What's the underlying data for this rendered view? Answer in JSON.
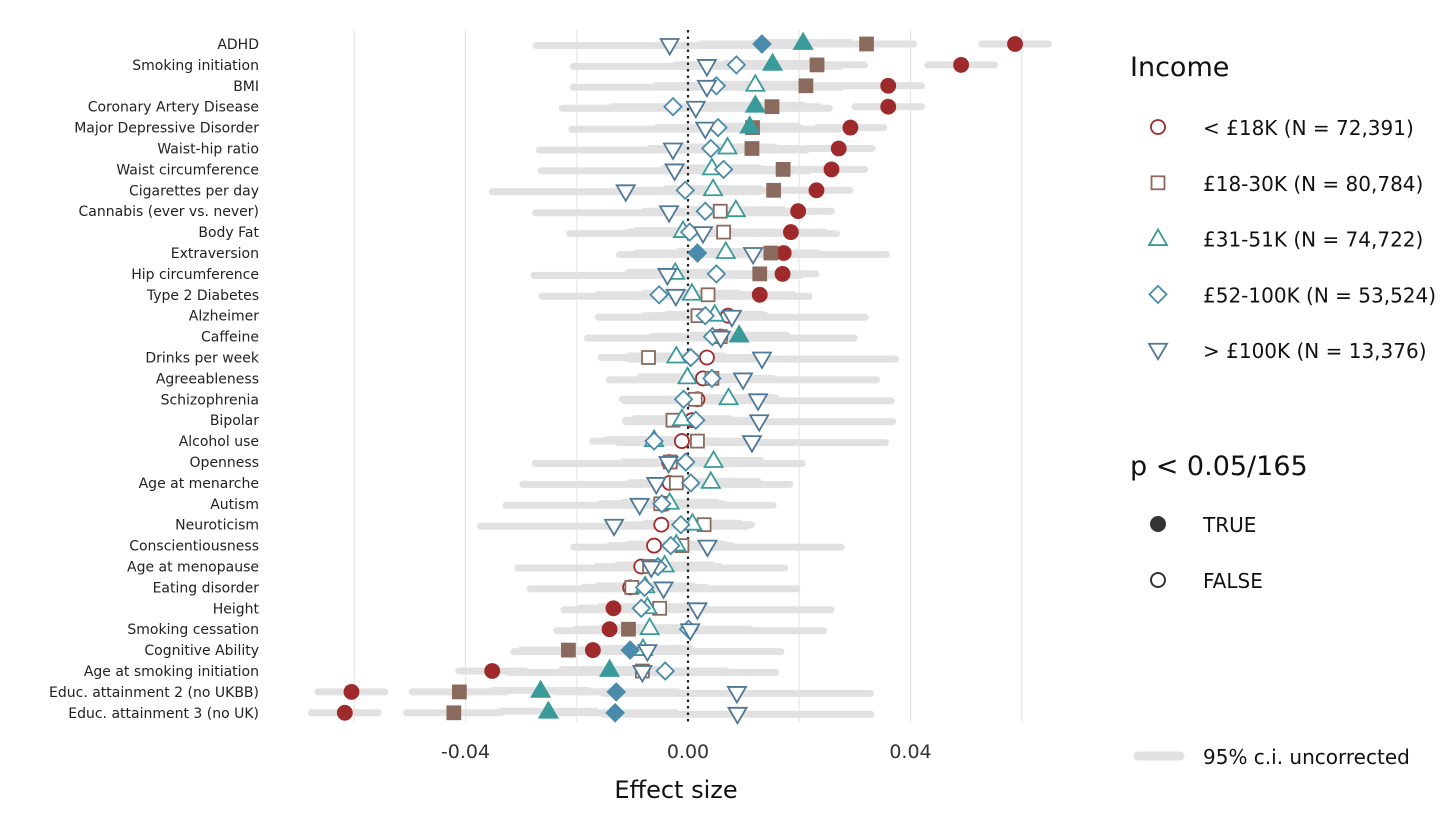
{
  "chart_data": {
    "type": "scatter",
    "xlabel": "Effect size",
    "ylabel": "",
    "xlim": [
      -0.069,
      0.065
    ],
    "x_ticks": [
      -0.04,
      0.0,
      0.04
    ],
    "x_tick_labels": [
      "-0.04",
      "0.00",
      "0.04"
    ],
    "vertical_gridlines_at": [
      -0.06,
      -0.04,
      -0.02,
      0.0,
      0.02,
      0.04,
      0.06
    ],
    "reference_line": 0.0,
    "categories": [
      "ADHD",
      "Smoking initiation",
      "BMI",
      "Coronary Artery Disease",
      "Major Depressive Disorder",
      "Waist-hip ratio",
      "Waist circumference",
      "Cigarettes per day",
      "Cannabis (ever vs. never)",
      "Body Fat",
      "Extraversion",
      "Hip circumference",
      "Type 2 Diabetes",
      "Alzheimer",
      "Caffeine",
      "Drinks per week",
      "Agreeableness",
      "Schizophrenia",
      "Bipolar",
      "Alcohol use",
      "Openness",
      "Age at menarche",
      "Autism",
      "Neuroticism",
      "Conscientiousness",
      "Age at menopause",
      "Eating disorder",
      "Height",
      "Smoking cessation",
      "Cognitive Ability",
      "Age at smoking initiation",
      "Educ. attainment 2 (no UKBB)",
      "Educ. attainment 3 (no UK)"
    ],
    "series": [
      {
        "name": "< £18K (N = 72,391)",
        "color": "#9e2a2b",
        "shape": "circle",
        "offset": 0,
        "values": [
          0.0588,
          0.0491,
          0.036,
          0.036,
          0.0292,
          0.0271,
          0.0258,
          0.0231,
          0.0198,
          0.0185,
          0.0172,
          0.017,
          0.0129,
          0.0072,
          0.0058,
          0.0034,
          0.0027,
          0.0017,
          0.0007,
          -0.0011,
          -0.0034,
          -0.0033,
          -0.0042,
          -0.0048,
          -0.0061,
          -0.0084,
          -0.0104,
          -0.0134,
          -0.0141,
          -0.0171,
          -0.0352,
          -0.0605,
          -0.0617
        ],
        "significant": [
          true,
          true,
          true,
          true,
          true,
          true,
          true,
          true,
          true,
          true,
          true,
          true,
          true,
          false,
          false,
          false,
          false,
          false,
          false,
          false,
          false,
          false,
          false,
          false,
          false,
          false,
          false,
          true,
          true,
          true,
          true,
          true,
          true
        ]
      },
      {
        "name": "£18-30K (N = 80,784)",
        "color": "#8a6a5c",
        "shape": "square",
        "offset": 0,
        "values": [
          0.0321,
          0.0232,
          0.0212,
          0.0151,
          0.0116,
          0.0115,
          0.0171,
          0.0154,
          0.0058,
          0.0064,
          0.0149,
          0.0129,
          0.0036,
          0.0018,
          0.0058,
          -0.0071,
          0.0043,
          0.0013,
          -0.0027,
          0.0017,
          -0.0032,
          -0.0021,
          -0.0049,
          0.0029,
          -0.0011,
          -0.0069,
          -0.0101,
          -0.0051,
          -0.0107,
          -0.0215,
          -0.0082,
          -0.0411,
          -0.0421
        ],
        "significant": [
          true,
          true,
          true,
          true,
          true,
          true,
          true,
          true,
          false,
          false,
          true,
          true,
          false,
          false,
          false,
          false,
          false,
          false,
          false,
          false,
          false,
          false,
          false,
          false,
          false,
          false,
          false,
          false,
          true,
          true,
          false,
          true,
          true
        ]
      },
      {
        "name": "£31-51K (N = 74,722)",
        "color": "#3a9a9a",
        "shape": "triangle-up",
        "offset": -1.5,
        "values": [
          0.0207,
          0.0152,
          0.0121,
          0.0121,
          0.0111,
          0.0071,
          0.0043,
          0.0045,
          0.0086,
          -0.0009,
          0.0068,
          -0.0023,
          0.0007,
          0.0048,
          0.0092,
          -0.0021,
          -0.0001,
          0.0073,
          -0.0011,
          -0.0061,
          0.0046,
          0.0041,
          -0.0033,
          0.0008,
          -0.0021,
          -0.0042,
          -0.0077,
          -0.0073,
          -0.0069,
          -0.0081,
          -0.0141,
          -0.0265,
          -0.0251
        ],
        "significant": [
          true,
          true,
          false,
          true,
          true,
          false,
          false,
          false,
          false,
          false,
          false,
          false,
          false,
          false,
          true,
          false,
          false,
          false,
          false,
          false,
          false,
          false,
          false,
          false,
          false,
          false,
          false,
          false,
          false,
          false,
          true,
          true,
          true
        ]
      },
      {
        "name": "£52-100K (N = 53,524)",
        "color": "#4a8aaa",
        "shape": "diamond",
        "offset": 0,
        "values": [
          0.0133,
          0.0087,
          0.0051,
          -0.0027,
          0.0054,
          0.0041,
          0.0064,
          -0.0005,
          0.0031,
          0.0003,
          0.0017,
          0.0051,
          -0.0052,
          0.0031,
          0.0044,
          0.0005,
          0.0043,
          -0.0008,
          0.0014,
          -0.0061,
          -0.0004,
          0.0005,
          -0.0047,
          -0.0013,
          -0.0031,
          -0.0054,
          -0.0078,
          -0.0084,
          0.0001,
          -0.0104,
          -0.0041,
          -0.0129,
          -0.0131
        ],
        "significant": [
          true,
          false,
          false,
          false,
          false,
          false,
          false,
          false,
          false,
          false,
          true,
          false,
          false,
          false,
          false,
          false,
          false,
          false,
          false,
          false,
          false,
          false,
          false,
          false,
          false,
          false,
          false,
          false,
          false,
          true,
          false,
          true,
          true
        ]
      },
      {
        "name": "> £100K (N = 13,376)",
        "color": "#4e7898",
        "shape": "triangle-down",
        "offset": 1.5,
        "values": [
          -0.0033,
          0.0034,
          0.0034,
          0.0014,
          0.0031,
          -0.0027,
          -0.0024,
          -0.0112,
          -0.0034,
          0.0027,
          0.0117,
          -0.0037,
          -0.0022,
          0.0079,
          0.0059,
          0.0133,
          0.0099,
          0.0126,
          0.0128,
          0.0115,
          -0.0035,
          -0.0057,
          -0.0087,
          -0.0133,
          0.0035,
          -0.0066,
          -0.0044,
          0.0017,
          0.0004,
          -0.0073,
          -0.0082,
          0.0088,
          0.0089
        ],
        "significant": [
          false,
          false,
          false,
          false,
          false,
          false,
          false,
          false,
          false,
          false,
          false,
          false,
          false,
          false,
          false,
          false,
          false,
          false,
          false,
          false,
          false,
          false,
          false,
          false,
          false,
          false,
          false,
          false,
          false,
          false,
          false,
          false,
          false
        ]
      }
    ],
    "legend": {
      "position": "right",
      "income_title": "Income",
      "p_title": "p < 0.05/165",
      "p_true_label": "TRUE",
      "p_false_label": "FALSE",
      "ci_label": "95% c.i. uncorrected"
    },
    "ci_color": "#e1e1e1",
    "grid": true
  }
}
